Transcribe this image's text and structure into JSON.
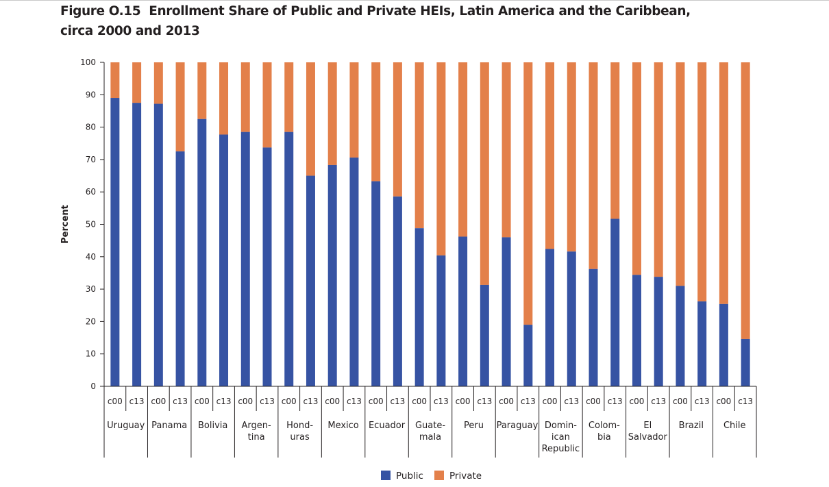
{
  "figure": {
    "number": "Figure O.15",
    "title_line1": "Enrollment Share of Public and Private HEIs, Latin America and the Caribbean,",
    "title_line2": "circa 2000 and 2013"
  },
  "chart_data": {
    "type": "bar",
    "stacked": true,
    "title": "Enrollment Share of Public and Private HEIs, Latin America and the Caribbean, circa 2000 and 2013",
    "ylabel": "Percent",
    "xlabel": "",
    "ylim": [
      0,
      100
    ],
    "yticks": [
      0,
      10,
      20,
      30,
      40,
      50,
      60,
      70,
      80,
      90,
      100
    ],
    "legend": "bottom",
    "colors": {
      "Public": "#3653a3",
      "Private": "#e3804a"
    },
    "groups": [
      {
        "name": [
          "Uruguay"
        ],
        "periods": [
          "c00",
          "c13"
        ],
        "public": [
          89,
          87.5
        ]
      },
      {
        "name": [
          "Panama"
        ],
        "periods": [
          "c00",
          "c13"
        ],
        "public": [
          87.2,
          72.5
        ]
      },
      {
        "name": [
          "Bolivia"
        ],
        "periods": [
          "c00",
          "c13"
        ],
        "public": [
          82.5,
          77.7
        ]
      },
      {
        "name": [
          "Argen-",
          "tina"
        ],
        "periods": [
          "c00",
          "c13"
        ],
        "public": [
          78.5,
          73.7
        ]
      },
      {
        "name": [
          "Hond-",
          "uras"
        ],
        "periods": [
          "c00",
          "c13"
        ],
        "public": [
          78.5,
          65
        ]
      },
      {
        "name": [
          "Mexico"
        ],
        "periods": [
          "c00",
          "c13"
        ],
        "public": [
          68.3,
          70.6
        ]
      },
      {
        "name": [
          "Ecuador"
        ],
        "periods": [
          "c00",
          "c13"
        ],
        "public": [
          63.3,
          58.6
        ]
      },
      {
        "name": [
          "Guate-",
          "mala"
        ],
        "periods": [
          "c00",
          "c13"
        ],
        "public": [
          48.8,
          40.4
        ]
      },
      {
        "name": [
          "Peru"
        ],
        "periods": [
          "c00",
          "c13"
        ],
        "public": [
          46.2,
          31.3
        ]
      },
      {
        "name": [
          "Paraguay"
        ],
        "periods": [
          "c00",
          "c13"
        ],
        "public": [
          46,
          19
        ]
      },
      {
        "name": [
          "Domin-",
          "ican",
          "Republic"
        ],
        "periods": [
          "c00",
          "c13"
        ],
        "public": [
          42.4,
          41.6
        ]
      },
      {
        "name": [
          "Colom-",
          "bia"
        ],
        "periods": [
          "c00",
          "c13"
        ],
        "public": [
          36.2,
          51.7
        ]
      },
      {
        "name": [
          "El",
          "Salvador"
        ],
        "periods": [
          "c00",
          "c13"
        ],
        "public": [
          34.4,
          33.8
        ]
      },
      {
        "name": [
          "Brazil"
        ],
        "periods": [
          "c00",
          "c13"
        ],
        "public": [
          31,
          26.2
        ]
      },
      {
        "name": [
          "Chile"
        ],
        "periods": [
          "c00",
          "c13"
        ],
        "public": [
          25.4,
          14.6
        ]
      }
    ],
    "series": [
      {
        "name": "Public"
      },
      {
        "name": "Private"
      }
    ]
  }
}
